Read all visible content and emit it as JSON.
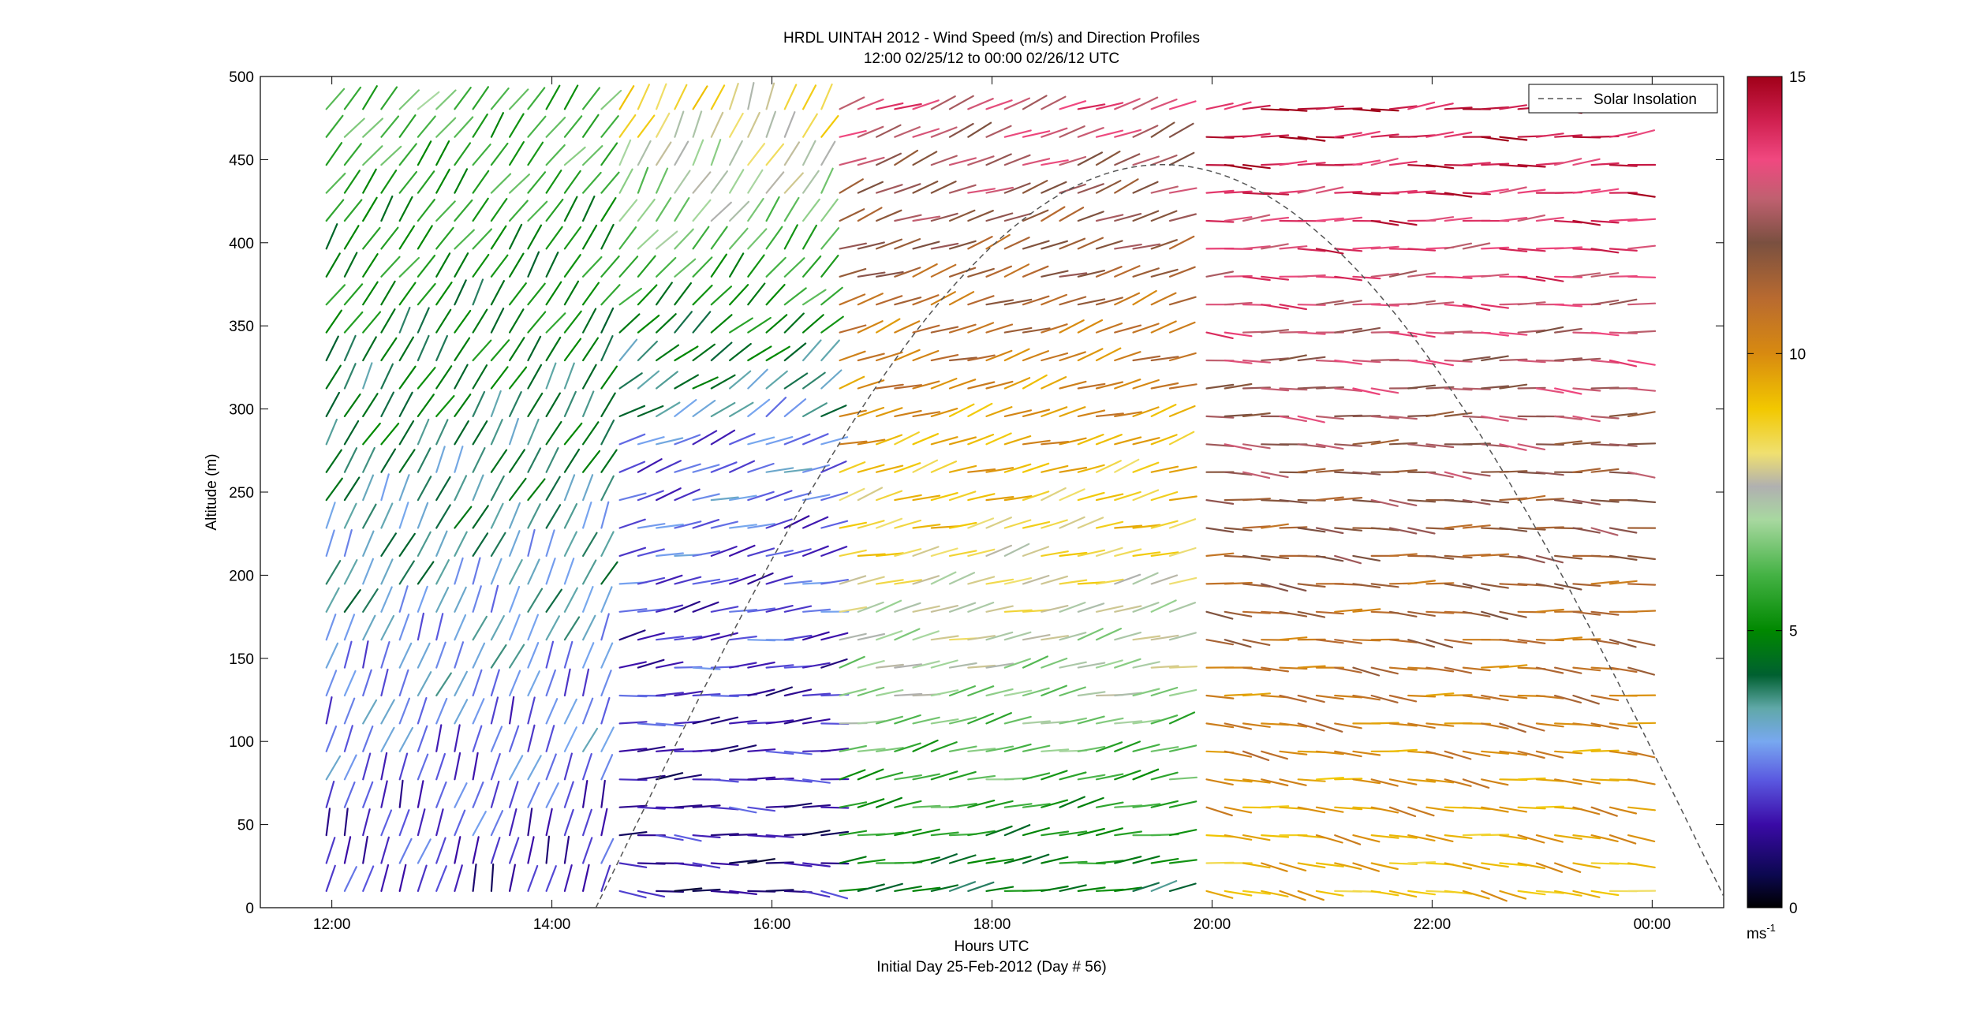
{
  "chart_data": {
    "type": "vector-profile",
    "title": "HRDL UINTAH 2012 - Wind Speed (m/s) and Direction Profiles",
    "subtitle": "12:00 02/25/12 to 00:00 02/26/12  UTC",
    "xlabel": "Hours UTC",
    "xlabel_note": "Initial Day 25-Feb-2012 (Day # 56)",
    "ylabel": "Altitude (m)",
    "x_ticks": [
      "12:00",
      "14:00",
      "16:00",
      "18:00",
      "20:00",
      "22:00",
      "00:00"
    ],
    "x_tick_values": [
      12,
      14,
      16,
      18,
      20,
      22,
      24
    ],
    "xlim": [
      11.35,
      24.65
    ],
    "y_ticks": [
      "0",
      "50",
      "100",
      "150",
      "200",
      "250",
      "300",
      "350",
      "400",
      "450",
      "500"
    ],
    "y_tick_values": [
      0,
      50,
      100,
      150,
      200,
      250,
      300,
      350,
      400,
      450,
      500
    ],
    "ylim": [
      0,
      500
    ],
    "legend": {
      "label": "Solar Insolation",
      "style": "dashed",
      "color": "#555555",
      "placement": "top-right"
    },
    "colorbar": {
      "ticks": [
        "0",
        "5",
        "10",
        "15"
      ],
      "tick_values": [
        0,
        5,
        10,
        15
      ],
      "unit_base": "ms",
      "unit_exp": "-1",
      "range": [
        0,
        15
      ],
      "stops": [
        {
          "v": 0,
          "color": "#000000"
        },
        {
          "v": 0.6,
          "color": "#0c0850"
        },
        {
          "v": 1.5,
          "color": "#3a0aa6"
        },
        {
          "v": 2.3,
          "color": "#5a58e0"
        },
        {
          "v": 3.0,
          "color": "#78a8f0"
        },
        {
          "v": 3.6,
          "color": "#60a8a8"
        },
        {
          "v": 4.2,
          "color": "#006030"
        },
        {
          "v": 5.0,
          "color": "#008800"
        },
        {
          "v": 6.0,
          "color": "#44b244"
        },
        {
          "v": 7.0,
          "color": "#a8d8a0"
        },
        {
          "v": 7.6,
          "color": "#b0b0b0"
        },
        {
          "v": 8.2,
          "color": "#f0e070"
        },
        {
          "v": 9.0,
          "color": "#f2c800"
        },
        {
          "v": 10.0,
          "color": "#d88a10"
        },
        {
          "v": 11.0,
          "color": "#b86a30"
        },
        {
          "v": 12.0,
          "color": "#7a5040"
        },
        {
          "v": 12.8,
          "color": "#c06070"
        },
        {
          "v": 13.5,
          "color": "#f04880"
        },
        {
          "v": 14.2,
          "color": "#d02050"
        },
        {
          "v": 15,
          "color": "#a00018"
        }
      ]
    },
    "solar_curve": {
      "start_hour": 14.4,
      "end_hour": 24.7,
      "peak_altitude": 447
    },
    "regimes": [
      {
        "t0": 11.95,
        "t1": 14.5,
        "z0": 0,
        "z1": 500,
        "speed_low": 1.6,
        "speed_high": 6.2,
        "dir_low": 15,
        "dir_high": 40
      },
      {
        "t0": 14.6,
        "t1": 16.5,
        "z0": 0,
        "z1": 280,
        "speed_low": 1.2,
        "speed_high": 2.6,
        "dir_low": 95,
        "dir_high": 70
      },
      {
        "t0": 14.6,
        "t1": 16.5,
        "z0": 280,
        "z1": 500,
        "speed_low": 3.0,
        "speed_high": 9.0,
        "dir_low": 60,
        "dir_high": 20
      },
      {
        "t0": 16.5,
        "t1": 19.7,
        "z0": 0,
        "z1": 500,
        "speed_low": 4.5,
        "speed_high": 13.5,
        "dir_low": 80,
        "dir_high": 68
      },
      {
        "t0": 19.95,
        "t1": 23.9,
        "z0": 0,
        "z1": 500,
        "speed_low": 9.0,
        "speed_high": 14.8,
        "dir_low": 100,
        "dir_high": 86
      }
    ]
  }
}
